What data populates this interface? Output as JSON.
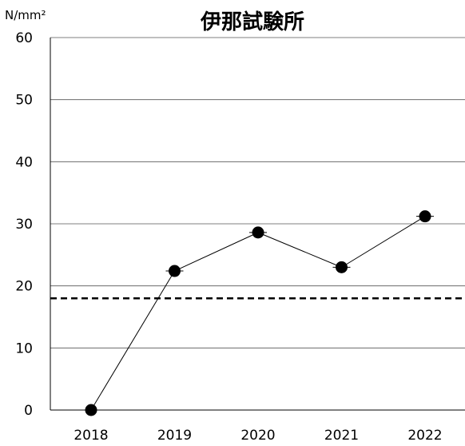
{
  "chart_data": {
    "type": "line",
    "title": "伊那試験所",
    "ylabel": "N/mm²",
    "xlabel": "",
    "categories": [
      "2018",
      "2019",
      "2020",
      "2021",
      "2022"
    ],
    "x_tick_labels": [
      "2018",
      "2019",
      "2020",
      "2021",
      "2022"
    ],
    "y_tick_labels": [
      "0",
      "10",
      "20",
      "30",
      "40",
      "50",
      "60"
    ],
    "ylim": [
      0,
      60
    ],
    "yticks": [
      0,
      10,
      20,
      30,
      40,
      50,
      60
    ],
    "grid": true,
    "series": [
      {
        "values": [
          0,
          22.4,
          28.6,
          23.0,
          31.2
        ],
        "color": "#000000",
        "marker": "circle"
      }
    ],
    "reference_line": {
      "value": 18,
      "style": "dashed",
      "color": "#000000"
    }
  }
}
